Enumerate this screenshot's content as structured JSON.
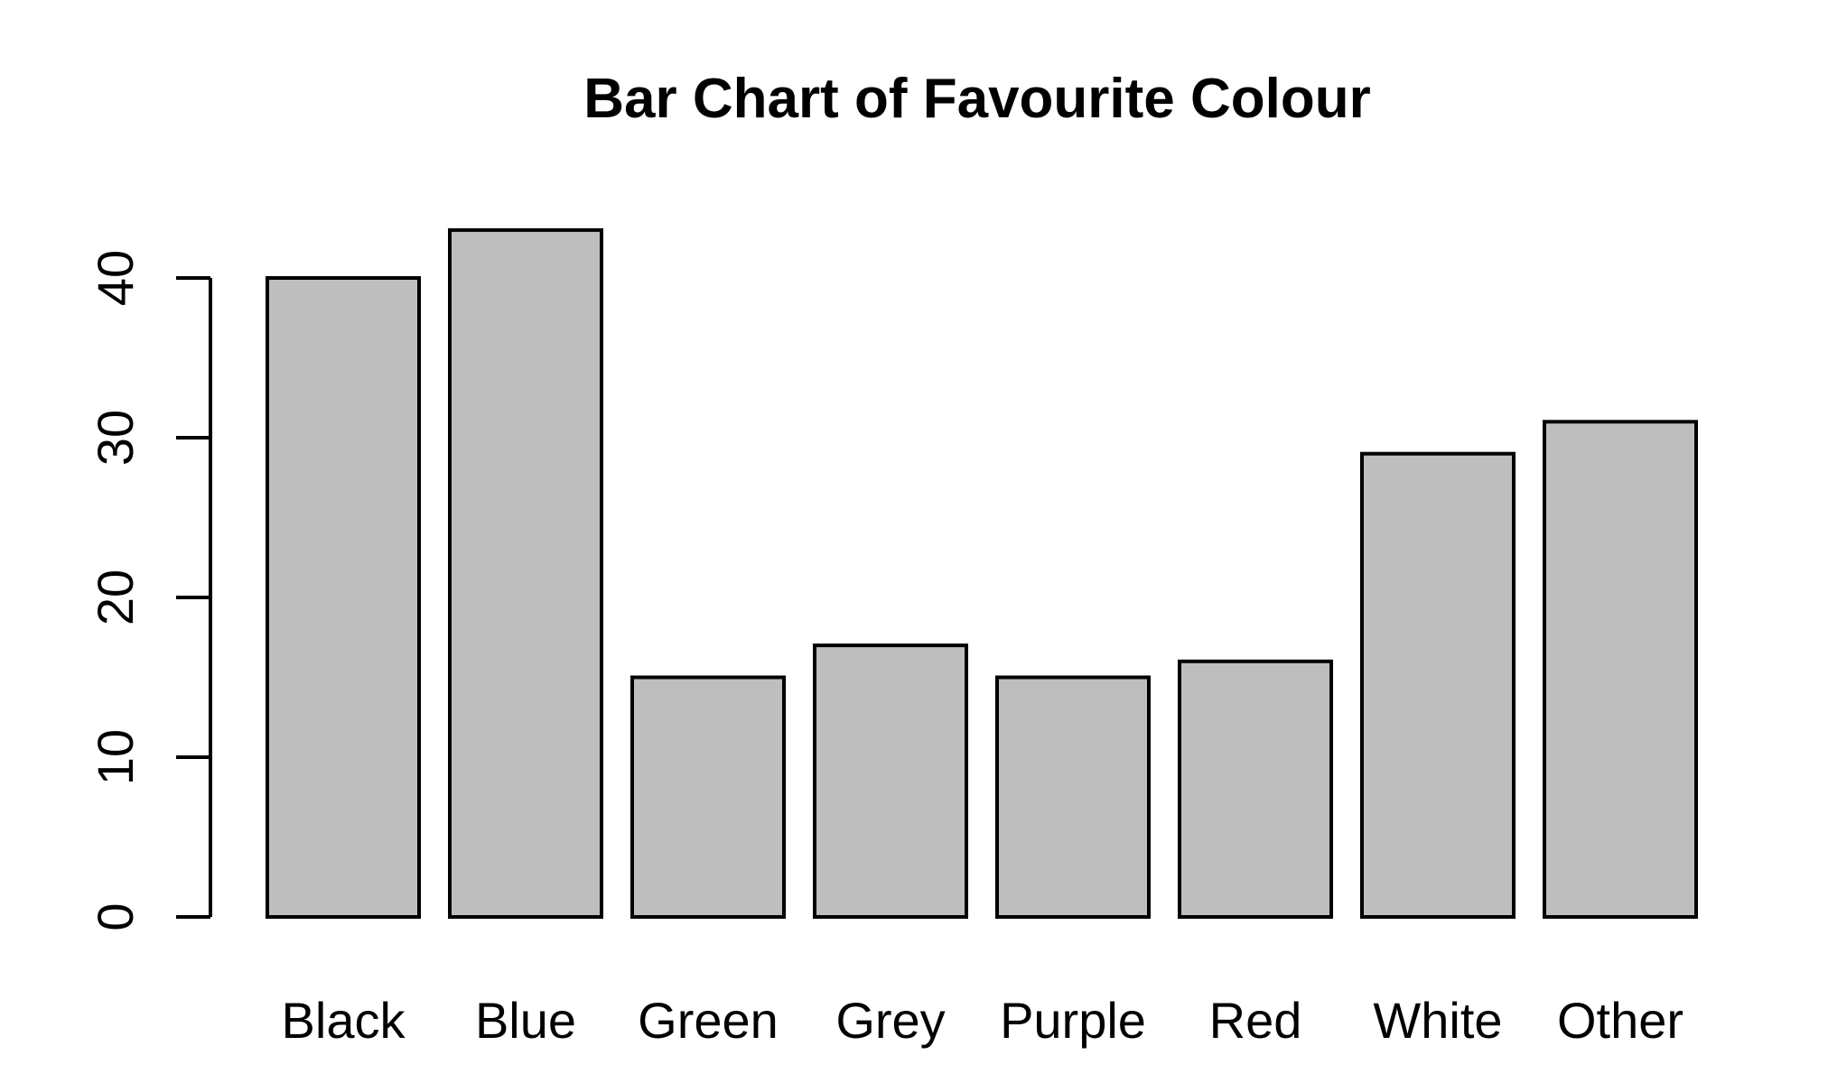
{
  "chart_data": {
    "type": "bar",
    "title": "Bar Chart of Favourite Colour",
    "xlabel": "",
    "ylabel": "",
    "categories": [
      "Black",
      "Blue",
      "Green",
      "Grey",
      "Purple",
      "Red",
      "White",
      "Other"
    ],
    "values": [
      40,
      43,
      15,
      17,
      15,
      16,
      29,
      31
    ],
    "ylim": [
      0,
      40
    ],
    "yticks": [
      "0",
      "10",
      "20",
      "30",
      "40"
    ],
    "bar_fill": "#bebebe",
    "bar_stroke": "#000000",
    "grid": false,
    "legend": "none"
  }
}
